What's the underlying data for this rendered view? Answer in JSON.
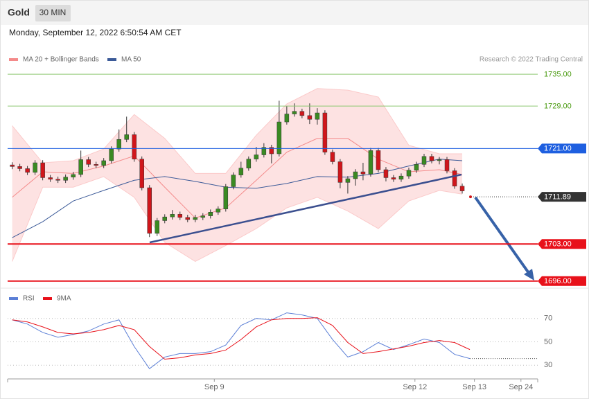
{
  "header": {
    "title": "Gold",
    "interval": "30 MIN",
    "timestamp": "Monday, September 12, 2022 6:50:54 AM CET",
    "credit": "Research © 2022 Trading Central"
  },
  "chart_data": [
    {
      "type": "candlestick",
      "xlim": [
        -0.6,
        68.9
      ],
      "ylim": [
        1694.8,
        1740.5
      ],
      "up_color": "#3a8a22",
      "down_color": "#d0161b",
      "candles": [
        [
          1717.9,
          1718.4,
          1717.1,
          1717.6
        ],
        [
          1717.6,
          1718.1,
          1716.7,
          1717.2
        ],
        [
          1717.2,
          1717.7,
          1716.0,
          1716.5
        ],
        [
          1716.5,
          1718.8,
          1716.0,
          1718.3
        ],
        [
          1718.3,
          1718.8,
          1715.0,
          1715.5
        ],
        [
          1715.5,
          1716.0,
          1714.7,
          1715.2
        ],
        [
          1715.2,
          1715.7,
          1714.5,
          1715.0
        ],
        [
          1715.0,
          1716.1,
          1714.5,
          1715.6
        ],
        [
          1715.6,
          1716.6,
          1715.1,
          1716.1
        ],
        [
          1716.1,
          1720.6,
          1715.6,
          1718.9
        ],
        [
          1718.9,
          1719.4,
          1717.5,
          1718.0
        ],
        [
          1718.0,
          1718.5,
          1717.3,
          1717.8
        ],
        [
          1717.8,
          1719.2,
          1717.3,
          1718.7
        ],
        [
          1718.7,
          1721.4,
          1718.2,
          1720.9
        ],
        [
          1720.9,
          1724.6,
          1720.4,
          1722.7
        ],
        [
          1722.7,
          1727.0,
          1722.2,
          1723.6
        ],
        [
          1723.6,
          1724.1,
          1718.5,
          1719.0
        ],
        [
          1719.0,
          1719.5,
          1713.1,
          1713.6
        ],
        [
          1713.6,
          1714.1,
          1704.3,
          1705.0
        ],
        [
          1705.0,
          1707.9,
          1704.5,
          1707.4
        ],
        [
          1707.4,
          1708.6,
          1706.9,
          1708.1
        ],
        [
          1708.1,
          1709.4,
          1707.6,
          1708.6
        ],
        [
          1708.6,
          1709.1,
          1707.5,
          1708.0
        ],
        [
          1708.0,
          1708.5,
          1707.1,
          1707.6
        ],
        [
          1707.6,
          1708.5,
          1707.1,
          1708.0
        ],
        [
          1708.0,
          1708.8,
          1707.5,
          1708.3
        ],
        [
          1708.3,
          1709.5,
          1707.8,
          1709.0
        ],
        [
          1709.0,
          1710.1,
          1708.5,
          1709.6
        ],
        [
          1709.6,
          1714.3,
          1709.1,
          1713.8
        ],
        [
          1713.8,
          1716.5,
          1713.3,
          1716.0
        ],
        [
          1716.0,
          1718.5,
          1715.5,
          1717.3
        ],
        [
          1717.3,
          1719.5,
          1716.8,
          1719.0
        ],
        [
          1719.0,
          1721.3,
          1718.5,
          1719.8
        ],
        [
          1719.8,
          1722.0,
          1719.3,
          1721.2
        ],
        [
          1721.2,
          1721.7,
          1718.2,
          1720.0
        ],
        [
          1720.0,
          1730.0,
          1719.5,
          1726.0
        ],
        [
          1726.0,
          1729.0,
          1725.5,
          1727.5
        ],
        [
          1727.5,
          1729.5,
          1727.0,
          1728.0
        ],
        [
          1728.0,
          1728.5,
          1726.7,
          1727.2
        ],
        [
          1727.2,
          1729.5,
          1725.6,
          1726.5
        ],
        [
          1726.5,
          1728.6,
          1725.5,
          1727.7
        ],
        [
          1727.7,
          1728.2,
          1719.8,
          1720.3
        ],
        [
          1720.3,
          1720.8,
          1718.0,
          1718.5
        ],
        [
          1718.5,
          1719.0,
          1713.5,
          1714.6
        ],
        [
          1714.6,
          1715.8,
          1712.5,
          1715.3
        ],
        [
          1715.3,
          1717.1,
          1714.0,
          1716.6
        ],
        [
          1716.6,
          1718.3,
          1715.0,
          1716.2
        ],
        [
          1716.2,
          1721.1,
          1715.7,
          1720.6
        ],
        [
          1720.6,
          1721.1,
          1716.5,
          1717.0
        ],
        [
          1717.0,
          1717.5,
          1714.8,
          1715.5
        ],
        [
          1715.5,
          1716.0,
          1714.7,
          1715.2
        ],
        [
          1715.2,
          1716.3,
          1714.7,
          1715.8
        ],
        [
          1715.8,
          1717.4,
          1715.3,
          1716.9
        ],
        [
          1716.9,
          1718.5,
          1716.4,
          1718.0
        ],
        [
          1718.0,
          1720.0,
          1717.5,
          1719.5
        ],
        [
          1719.5,
          1720.0,
          1718.2,
          1718.7
        ],
        [
          1718.7,
          1719.4,
          1718.0,
          1718.9
        ],
        [
          1718.9,
          1719.4,
          1716.3,
          1716.8
        ],
        [
          1716.8,
          1717.3,
          1713.4,
          1713.9
        ],
        [
          1713.9,
          1714.4,
          1712.5,
          1713.0
        ]
      ],
      "x": [
        0,
        4,
        8,
        12,
        16,
        20,
        24,
        28,
        32,
        36,
        40,
        44,
        48,
        52,
        56,
        59
      ],
      "series": [
        {
          "name": "MA 20 + Bollinger Bands",
          "color": "#f48a8a",
          "band_color": "#fde2e2",
          "values": [
            1711.8,
            1716.6,
            1716.3,
            1717.7,
            1719.6,
            1713.7,
            1707.9,
            1709.8,
            1715.0,
            1720.3,
            1722.9,
            1722.9,
            1719.0,
            1716.6,
            1717.0,
            1716.1
          ],
          "upper": [
            1725.3,
            1718.3,
            1718.7,
            1720.9,
            1727.4,
            1722.9,
            1716.3,
            1716.3,
            1723.5,
            1729.4,
            1732.3,
            1732.0,
            1730.7,
            1721.6,
            1720.0,
            1720.0
          ],
          "lower": [
            1699.7,
            1713.7,
            1713.7,
            1715.7,
            1711.8,
            1703.3,
            1699.7,
            1702.7,
            1705.9,
            1709.8,
            1711.8,
            1709.2,
            1705.9,
            1711.1,
            1713.1,
            1712.4
          ]
        },
        {
          "name": "MA 50",
          "color": "#3b5a98",
          "values": [
            1704.2,
            1707.2,
            1711.1,
            1713.1,
            1715.0,
            1715.7,
            1714.8,
            1713.7,
            1713.5,
            1714.4,
            1715.7,
            1715.6,
            1716.3,
            1717.7,
            1719.0,
            1718.7
          ]
        }
      ],
      "levels": [
        {
          "value": 1735,
          "label": "1735.00",
          "color": "#8cc870",
          "text_color": "#4a9a10",
          "boxed": false,
          "style": "solid"
        },
        {
          "value": 1729,
          "label": "1729.00",
          "color": "#8cc870",
          "text_color": "#4a9a10",
          "boxed": false,
          "style": "solid"
        },
        {
          "value": 1721,
          "label": "1721.00",
          "color": "#1e5fe0",
          "text_color": "#ffffff",
          "boxed": true,
          "style": "solid"
        },
        {
          "value": 1711.89,
          "label": "1711.89",
          "color": "#333333",
          "text_color": "#ffffff",
          "boxed": true,
          "style": "dotted"
        },
        {
          "value": 1703,
          "label": "1703.00",
          "color": "#e8111a",
          "text_color": "#ffffff",
          "boxed": true,
          "style": "solid"
        },
        {
          "value": 1696,
          "label": "1696.00",
          "color": "#e8111a",
          "text_color": "#ffffff",
          "boxed": true,
          "style": "solid"
        }
      ]
    },
    {
      "type": "line",
      "xlim": [
        -0.6,
        68.9
      ],
      "ylim": [
        19.5,
        93.5
      ],
      "yticks": [
        70,
        50,
        30
      ],
      "xticks": [
        {
          "value": 26.5,
          "label": "Sep 9"
        },
        {
          "value": 52.8,
          "label": "Sep 12"
        },
        {
          "value": 60.6,
          "label": "Sep 13"
        },
        {
          "value": 66.7,
          "label": "Sep 24"
        }
      ],
      "x": [
        0,
        2,
        4,
        6,
        8,
        10,
        12,
        14,
        16,
        18,
        20,
        22,
        24,
        26,
        28,
        30,
        32,
        34,
        36,
        38,
        40,
        42,
        44,
        46,
        48,
        50,
        52,
        54,
        56,
        58,
        60
      ],
      "series": [
        {
          "name": "RSI",
          "color": "#5b7fd6",
          "values": [
            68.8,
            65.2,
            58,
            53.9,
            56.3,
            59.3,
            65.2,
            68.8,
            46,
            27,
            37,
            40,
            40,
            41.6,
            47.3,
            64,
            70,
            68.8,
            74.8,
            73,
            70,
            52,
            37,
            41.6,
            49.4,
            43.4,
            47.6,
            52.4,
            49.4,
            39.3,
            35.7
          ]
        },
        {
          "name": "9MA",
          "color": "#e8111a",
          "values": [
            68.8,
            67,
            62.8,
            58,
            56.8,
            58,
            60.4,
            64,
            60.4,
            46,
            35.2,
            36.4,
            38.8,
            40,
            43,
            52,
            62.8,
            68.8,
            70,
            70,
            70.6,
            64,
            49.4,
            40,
            41.6,
            43.9,
            46.3,
            49.4,
            51.1,
            49.4,
            43.4
          ]
        }
      ]
    }
  ]
}
